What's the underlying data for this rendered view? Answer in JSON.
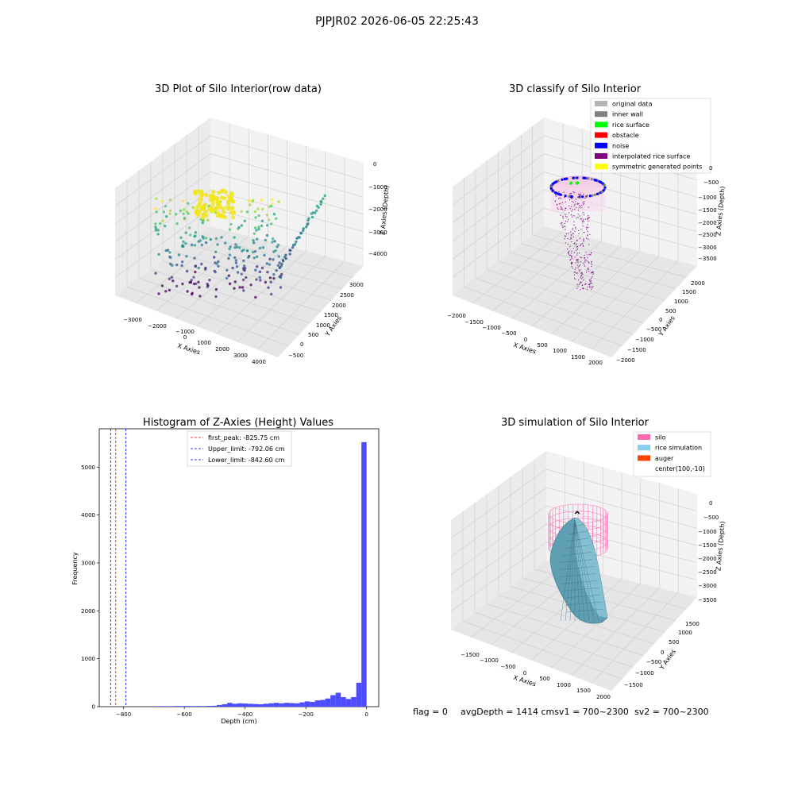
{
  "suptitle": "PJPJR02 2026-06-05 22:25:43",
  "panel1": {
    "title": "3D Plot of Silo Interior(row data)",
    "xlabel": "X Axies",
    "ylabel": "Y Axies",
    "zlabel": "Z Axies (Depth)",
    "xticks": [
      "−3000",
      "−2000",
      "−1000",
      "0",
      "1000",
      "2000",
      "3000",
      "4000"
    ],
    "yticks": [
      "−500",
      "0",
      "500",
      "1000",
      "1500",
      "2000",
      "2500",
      "3000"
    ],
    "zticks": [
      "0",
      "−1000",
      "−2000",
      "−3000",
      "−4000"
    ]
  },
  "panel2": {
    "title": "3D classify of Silo Interior",
    "xlabel": "X Axies",
    "ylabel": "Y Axies",
    "zlabel": "Z Axies (Depth)",
    "xticks": [
      "−2000",
      "−1500",
      "−1000",
      "−500",
      "0",
      "500",
      "1000",
      "1500",
      "2000"
    ],
    "yticks": [
      "−2000",
      "−1500",
      "−1000",
      "−500",
      "0",
      "500",
      "1000",
      "1500",
      "2000"
    ],
    "zticks": [
      "0",
      "−500",
      "−1000",
      "−1500",
      "−2000",
      "−2500",
      "−3000",
      "−3500"
    ],
    "legend": [
      {
        "label": "original data",
        "color": "#b3b3b3"
      },
      {
        "label": "inner wall",
        "color": "#808080"
      },
      {
        "label": "rice surface",
        "color": "#00ff00"
      },
      {
        "label": "obstacle",
        "color": "#ff0000"
      },
      {
        "label": "noise",
        "color": "#0000ff"
      },
      {
        "label": "interpolated rice surface",
        "color": "#800080"
      },
      {
        "label": "symmetric generated points",
        "color": "#ffff00"
      }
    ]
  },
  "panel3": {
    "chart_data": {
      "type": "bar",
      "title": "Histogram of Z-Axies (Height) Values",
      "xlabel": "Depth (cm)",
      "ylabel": "Frequency",
      "xlim": [
        -880,
        40
      ],
      "ylim": [
        0,
        5800
      ],
      "xticks": [
        -800,
        -600,
        -400,
        -200,
        0
      ],
      "xtick_labels": [
        "−800",
        "−600",
        "−400",
        "−200",
        "0"
      ],
      "yticks": [
        0,
        1000,
        2000,
        3000,
        4000,
        5000
      ],
      "ytick_labels": [
        "0",
        "1000",
        "2000",
        "3000",
        "4000",
        "5000"
      ],
      "bin_width": 17,
      "bins": [
        {
          "x": -680,
          "v": 10
        },
        {
          "x": -663,
          "v": 12
        },
        {
          "x": -646,
          "v": 10
        },
        {
          "x": -629,
          "v": 12
        },
        {
          "x": -612,
          "v": 14
        },
        {
          "x": -595,
          "v": 12
        },
        {
          "x": -578,
          "v": 14
        },
        {
          "x": -561,
          "v": 12
        },
        {
          "x": -544,
          "v": 14
        },
        {
          "x": -527,
          "v": 12
        },
        {
          "x": -510,
          "v": 16
        },
        {
          "x": -493,
          "v": 18
        },
        {
          "x": -476,
          "v": 35
        },
        {
          "x": -459,
          "v": 50
        },
        {
          "x": -442,
          "v": 80
        },
        {
          "x": -425,
          "v": 60
        },
        {
          "x": -408,
          "v": 70
        },
        {
          "x": -391,
          "v": 65
        },
        {
          "x": -374,
          "v": 60
        },
        {
          "x": -357,
          "v": 55
        },
        {
          "x": -340,
          "v": 50
        },
        {
          "x": -323,
          "v": 60
        },
        {
          "x": -306,
          "v": 70
        },
        {
          "x": -289,
          "v": 80
        },
        {
          "x": -272,
          "v": 70
        },
        {
          "x": -255,
          "v": 80
        },
        {
          "x": -238,
          "v": 75
        },
        {
          "x": -221,
          "v": 70
        },
        {
          "x": -204,
          "v": 90
        },
        {
          "x": -187,
          "v": 110
        },
        {
          "x": -170,
          "v": 100
        },
        {
          "x": -153,
          "v": 130
        },
        {
          "x": -136,
          "v": 140
        },
        {
          "x": -119,
          "v": 170
        },
        {
          "x": -102,
          "v": 240
        },
        {
          "x": -85,
          "v": 290
        },
        {
          "x": -68,
          "v": 200
        },
        {
          "x": -51,
          "v": 160
        },
        {
          "x": -34,
          "v": 200
        },
        {
          "x": -17,
          "v": 500
        },
        {
          "x": 0,
          "v": 5520
        }
      ],
      "vlines": [
        {
          "label": "first_peak: -825.75 cm",
          "x": -825.75,
          "color": "#ff0000"
        },
        {
          "label": "Upper_limit: -792.06 cm",
          "x": -792.06,
          "color": "#0000ff"
        },
        {
          "label": "Lower_limit: -842.60 cm",
          "x": -842.6,
          "color": "#0000ff"
        }
      ],
      "bar_color": "#4d4dff"
    }
  },
  "panel4": {
    "title": "3D simulation of Silo Interior",
    "xlabel": "X Axies",
    "ylabel": "Y Axies",
    "zlabel": "Z Axies (Depth)",
    "xticks": [
      "−1500",
      "−1000",
      "−500",
      "0",
      "500",
      "1000",
      "1500",
      "2000"
    ],
    "yticks": [
      "−1500",
      "−1000",
      "−500",
      "0",
      "500",
      "1000",
      "1500"
    ],
    "zticks": [
      "0",
      "−500",
      "−1000",
      "−1500",
      "−2000",
      "−2500",
      "−3000",
      "−3500"
    ],
    "legend": [
      {
        "label": "silo",
        "color": "#ff69b4"
      },
      {
        "label": "rice simulation",
        "color": "#87ceeb"
      },
      {
        "label": "auger",
        "color": "#ff4500"
      },
      {
        "label": "center(100,-10)",
        "color": ""
      }
    ]
  },
  "status": {
    "flag": "flag = 0",
    "avg": "avgDepth = 1414 cmsv1 = 700~2300",
    "sv2": "sv2 = 700~2300"
  }
}
